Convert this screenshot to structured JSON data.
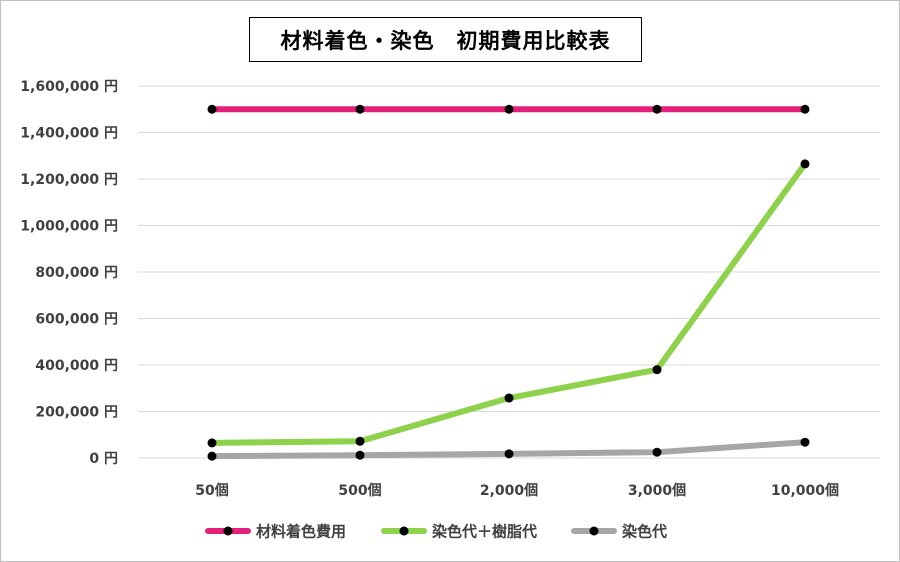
{
  "chart_data": {
    "type": "line",
    "title": "材料着色・染色　初期費用比較表",
    "categories": [
      "50個",
      "500個",
      "2,000個",
      "3,000個",
      "10,000個"
    ],
    "y_ticks": [
      "0 円",
      "200,000 円",
      "400,000 円",
      "600,000 円",
      "800,000 円",
      "1,000,000 円",
      "1,200,000 円",
      "1,400,000 円",
      "1,600,000 円"
    ],
    "ylim": [
      0,
      1600000
    ],
    "grid": true,
    "legend_position": "bottom",
    "series": [
      {
        "name": "材料着色費用",
        "color": "#e5207c",
        "values": [
          1500000,
          1500000,
          1500000,
          1500000,
          1500000
        ]
      },
      {
        "name": "染色代＋樹脂代",
        "color": "#8ed14b",
        "values": [
          65000,
          72000,
          258000,
          380000,
          1265000
        ]
      },
      {
        "name": "染色代",
        "color": "#a6a6a6",
        "values": [
          8000,
          12000,
          18000,
          25000,
          68000
        ]
      }
    ],
    "marker_color": "#000000"
  }
}
